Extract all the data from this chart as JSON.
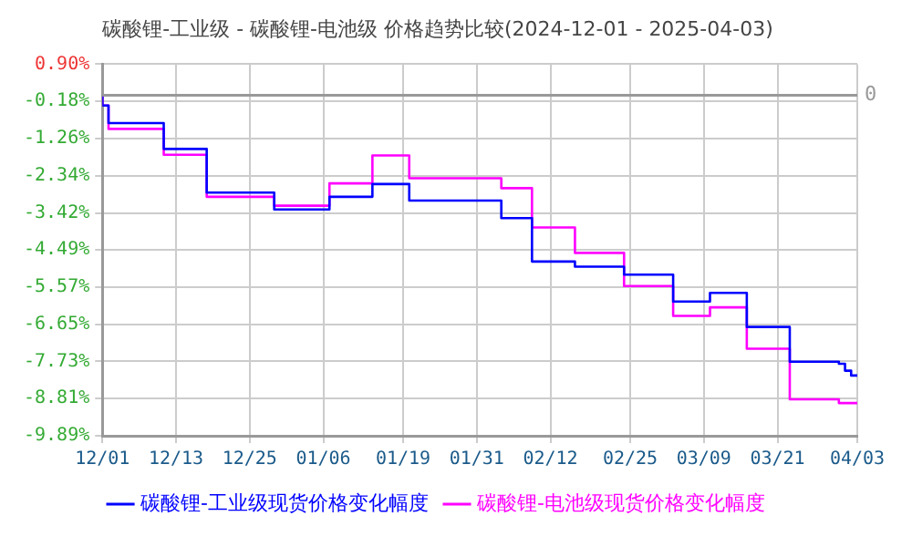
{
  "chart_data": {
    "type": "step",
    "title": "碳酸锂-工业级 - 碳酸锂-电池级 价格趋势比较(2024-12-01 - 2025-04-03)",
    "xlim": [
      "2024-12-01",
      "2025-04-03"
    ],
    "xticks": [
      {
        "value": "2024-12-01",
        "label": "12/01"
      },
      {
        "value": "2024-12-13",
        "label": "12/13"
      },
      {
        "value": "2024-12-25",
        "label": "12/25"
      },
      {
        "value": "2025-01-06",
        "label": "01/06"
      },
      {
        "value": "2025-01-19",
        "label": "01/19"
      },
      {
        "value": "2025-01-31",
        "label": "01/31"
      },
      {
        "value": "2025-02-12",
        "label": "02/12"
      },
      {
        "value": "2025-02-25",
        "label": "02/25"
      },
      {
        "value": "2025-03-09",
        "label": "03/09"
      },
      {
        "value": "2025-03-21",
        "label": "03/21"
      },
      {
        "value": "2025-04-03",
        "label": "04/03"
      }
    ],
    "ylim": [
      -9.89,
      0.9
    ],
    "yticks": [
      {
        "value": 0.9,
        "label": "0.90%"
      },
      {
        "value": -0.18,
        "label": "-0.18%"
      },
      {
        "value": -1.26,
        "label": "-1.26%"
      },
      {
        "value": -2.34,
        "label": "-2.34%"
      },
      {
        "value": -3.42,
        "label": "-3.42%"
      },
      {
        "value": -4.49,
        "label": "-4.49%"
      },
      {
        "value": -5.57,
        "label": "-5.57%"
      },
      {
        "value": -6.65,
        "label": "-6.65%"
      },
      {
        "value": -7.73,
        "label": "-7.73%"
      },
      {
        "value": -8.81,
        "label": "-8.81%"
      },
      {
        "value": -9.89,
        "label": "-9.89%"
      }
    ],
    "ref_lines": [
      {
        "axis": "y",
        "value": 0,
        "label": "0",
        "color": "#999999",
        "line_style": "solid"
      }
    ],
    "grid": true,
    "legend": "bottom",
    "marker": "none",
    "series": [
      {
        "name": "碳酸锂-工业级现货价格变化幅度",
        "color": "#0000ff",
        "x": [
          "2024-12-01",
          "2024-12-02",
          "2024-12-11",
          "2024-12-18",
          "2024-12-29",
          "2025-01-07",
          "2025-01-14",
          "2025-01-20",
          "2025-02-04",
          "2025-02-09",
          "2025-02-16",
          "2025-02-24",
          "2025-03-04",
          "2025-03-10",
          "2025-03-16",
          "2025-03-23",
          "2025-03-31",
          "2025-04-01",
          "2025-04-02",
          "2025-04-03"
        ],
        "values": [
          0,
          -0.3,
          -0.81,
          -1.56,
          -2.83,
          -3.32,
          -2.95,
          -2.58,
          -3.06,
          -3.57,
          -4.83,
          -4.98,
          -5.21,
          -5.99,
          -5.74,
          -6.73,
          -7.74,
          -7.8,
          -8.0,
          -8.14
        ]
      },
      {
        "name": "碳酸锂-电池级现货价格变化幅度",
        "color": "#ff00ff",
        "x": [
          "2024-12-01",
          "2024-12-02",
          "2024-12-11",
          "2024-12-18",
          "2024-12-29",
          "2025-01-07",
          "2025-01-14",
          "2025-01-20",
          "2025-02-04",
          "2025-02-09",
          "2025-02-16",
          "2025-02-24",
          "2025-03-04",
          "2025-03-10",
          "2025-03-16",
          "2025-03-23",
          "2025-03-31",
          "2025-04-02",
          "2025-04-03"
        ],
        "values": [
          0,
          -0.3,
          -0.98,
          -1.73,
          -2.95,
          -3.21,
          -2.56,
          -1.75,
          -2.41,
          -2.7,
          -3.84,
          -4.58,
          -5.54,
          -6.41,
          -6.16,
          -7.36,
          -8.83,
          -8.94,
          -8.94
        ]
      }
    ]
  }
}
